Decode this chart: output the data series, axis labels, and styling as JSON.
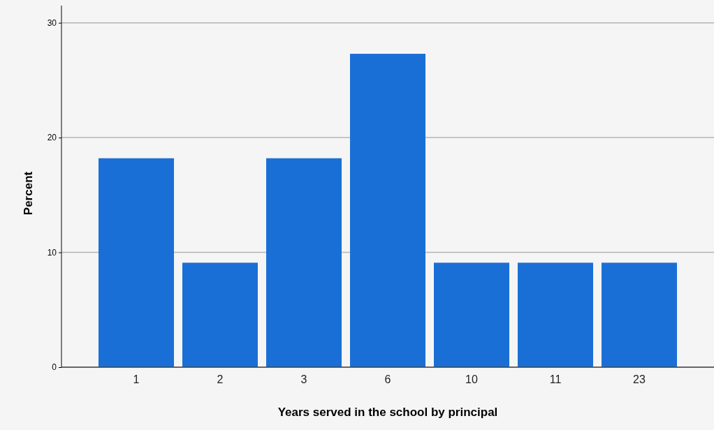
{
  "chart_data": {
    "type": "bar",
    "xlabel": "Years served in the school by principal",
    "ylabel": "Percent",
    "categories": [
      "1",
      "2",
      "3",
      "6",
      "10",
      "11",
      "23"
    ],
    "values": [
      18.2,
      9.1,
      18.2,
      27.3,
      9.1,
      9.1,
      9.1
    ],
    "color": "#1a6fd6",
    "ylim": [
      0,
      31.5
    ],
    "yticks": [
      0,
      10,
      20,
      30
    ],
    "grid": "y"
  }
}
